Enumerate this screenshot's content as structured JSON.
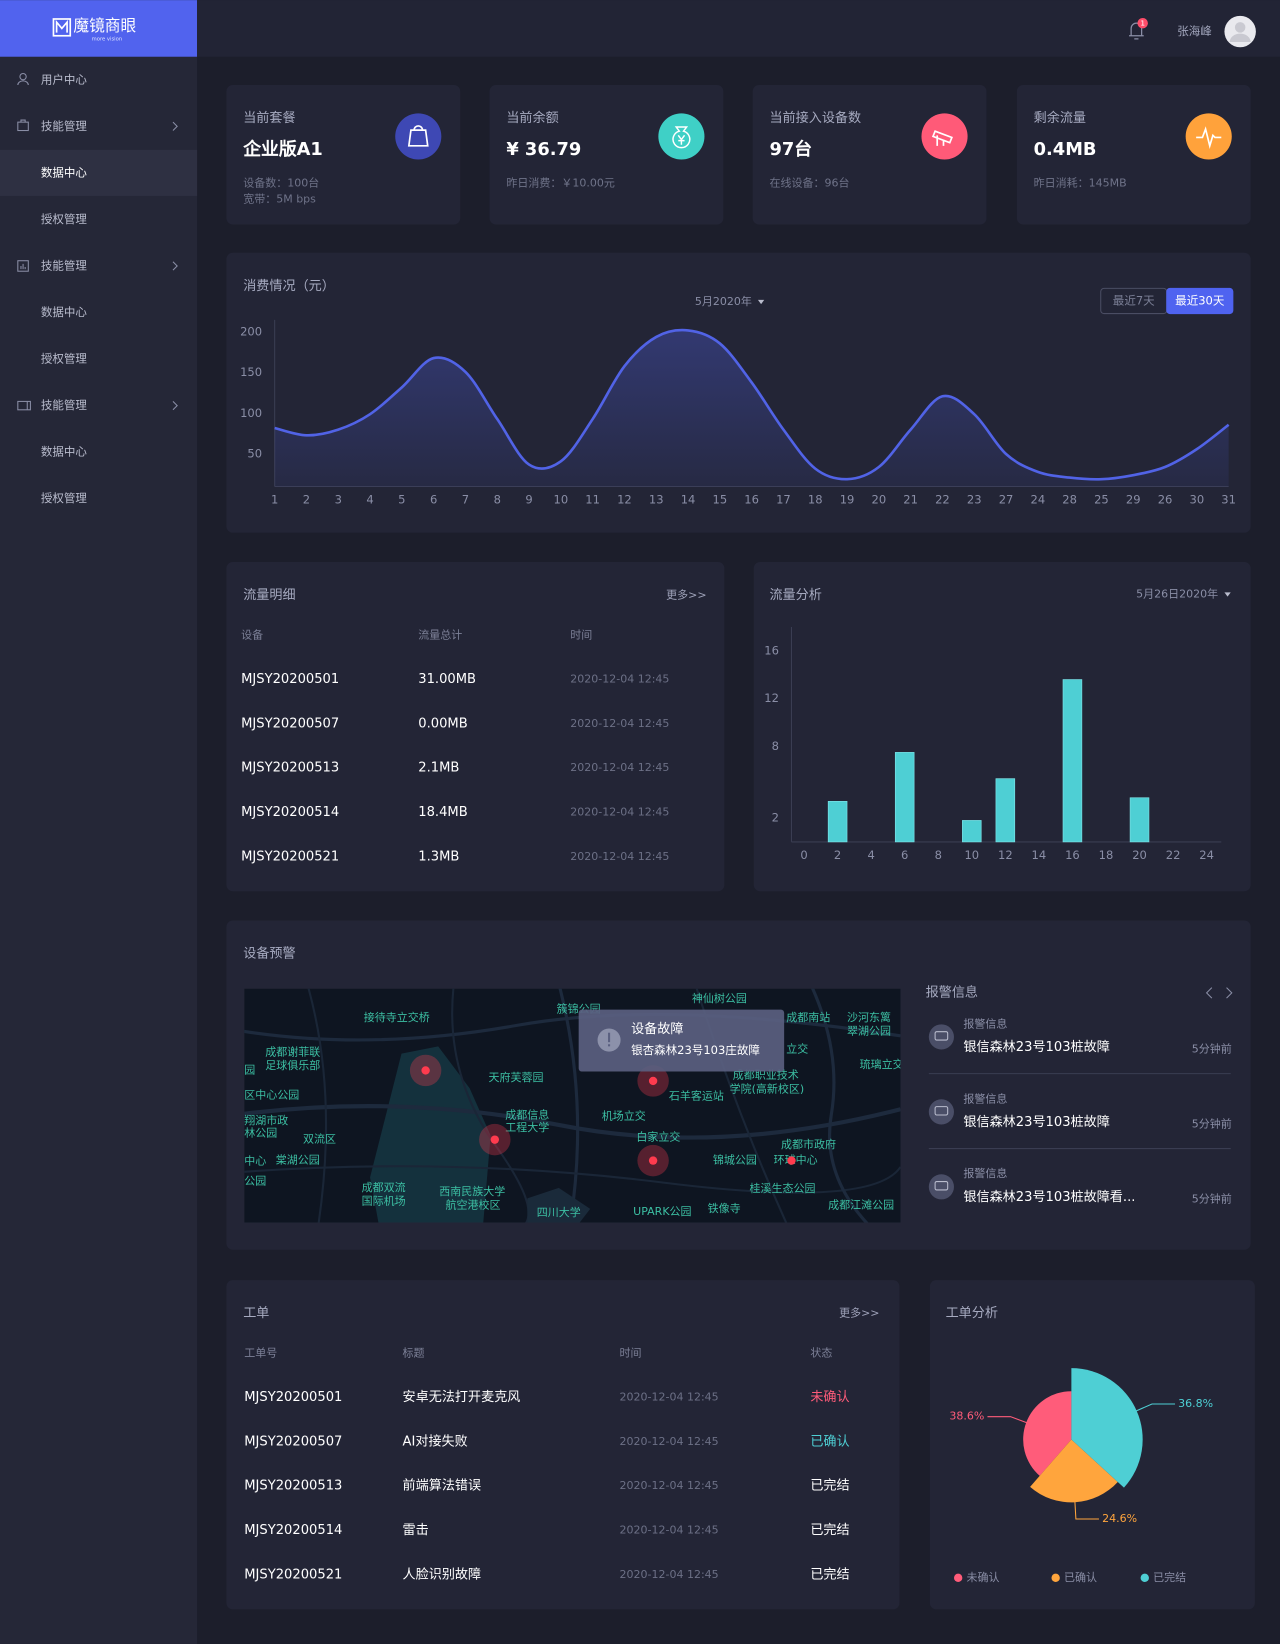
{
  "sidebar": {
    "logo": "魔镜商眼",
    "logo_sub": "more vision",
    "menu": [
      {
        "label": "用户中心"
      },
      {
        "label": "技能管理",
        "children": [
          "数据中心",
          "授权管理"
        ]
      },
      {
        "label": "技能管理",
        "children": [
          "数据中心",
          "授权管理"
        ]
      },
      {
        "label": "技能管理",
        "children": [
          "数据中心",
          "授权管理"
        ]
      }
    ]
  },
  "header": {
    "notifications": 1,
    "user": "张海峰"
  },
  "cards": [
    {
      "title": "当前套餐",
      "value": "企业版A1",
      "notes": [
        "设备数：100台",
        "宽带：5M bps"
      ],
      "color": "#3e48b4"
    },
    {
      "title": "当前余额",
      "value": "¥ 36.79",
      "notes": [
        "昨日消费：￥10.00元"
      ],
      "color": "#3fd0c6"
    },
    {
      "title": "当前接入设备数",
      "value": "97台",
      "notes": [
        "在线设备：96台"
      ],
      "color": "#ff5a78"
    },
    {
      "title": "剩余流量",
      "value": "0.4MB",
      "notes": [
        "昨日消耗：145MB"
      ],
      "color": "#ffa23b"
    }
  ],
  "consumption": {
    "period": "5月2020年",
    "ranges": [
      "最近7天",
      "最近30天"
    ]
  },
  "flow_detail": {
    "title": "流量明细",
    "more": "更多>>",
    "columns": [
      "设备",
      "流量总计",
      "时间"
    ],
    "rows": [
      [
        "MJSY20200501",
        "31.00MB",
        "2020-12-04  12:45"
      ],
      [
        "MJSY20200507",
        "0.00MB",
        "2020-12-04  12:45"
      ],
      [
        "MJSY20200513",
        "2.1MB",
        "2020-12-04  12:45"
      ],
      [
        "MJSY20200514",
        "18.4MB",
        "2020-12-04  12:45"
      ],
      [
        "MJSY20200521",
        "1.3MB",
        "2020-12-04  12:45"
      ]
    ]
  },
  "flow_analysis": {
    "period": "5月26日2020年"
  },
  "alerts": {
    "title": "设备预警",
    "map_labels": [
      "接待寺立交桥",
      "簇锦公园",
      "神仙树公园",
      "成都南站",
      "沙河东篱",
      "翠湖公园",
      "成都谢菲联",
      "足球俱乐部",
      "立交",
      "琉璃立交",
      "天府芙蓉园",
      "成都职业技术",
      "学院(高新校区)",
      "石羊客运站",
      "区中心公园",
      "成都信息",
      "工程大学",
      "机场立交",
      "翔湖市政",
      "林公园",
      "双流区",
      "白家立交",
      "成都市政府",
      "锦城公园",
      "环球中心",
      "棠湖公园",
      "中心",
      "公园",
      "成都双流",
      "国际机场",
      "西南民族大学",
      "航空港校区",
      "桂溪生态公园",
      "四川大学",
      "UPARK公园",
      "铁像寺",
      "成都江滩公园",
      "园"
    ],
    "tooltip": {
      "title": "设备故障",
      "text": "银杏森林23号103庄故障"
    },
    "panel_title": "报警信息",
    "items": [
      {
        "label": "报警信息",
        "text": "银信森林23号103桩故障",
        "time": "5分钟前"
      },
      {
        "label": "报警信息",
        "text": "银信森林23号103桩故障",
        "time": "5分钟前"
      },
      {
        "label": "报警信息",
        "text": "银信森林23号103桩故障看...",
        "time": "5分钟前"
      }
    ]
  },
  "work_orders": {
    "title": "工单",
    "more": "更多>>",
    "columns": [
      "工单号",
      "标题",
      "时间",
      "状态"
    ],
    "rows": [
      [
        "MJSY20200501",
        "安卓无法打开麦克风",
        "2020-12-04  12:45",
        "未确认"
      ],
      [
        "MJSY20200507",
        "AI对接失败",
        "2020-12-04  12:45",
        "已确认"
      ],
      [
        "MJSY20200513",
        "前端算法错误",
        "2020-12-04  12:45",
        "已完结"
      ],
      [
        "MJSY20200514",
        "雷击",
        "2020-12-04  12:45",
        "已完结"
      ],
      [
        "MJSY20200521",
        "人脸识别故障",
        "2020-12-04  12:45",
        "已完结"
      ]
    ],
    "status_colors": [
      "#ff5c7a",
      "#4ecfd4",
      "#ffffff",
      "#ffffff",
      "#ffffff"
    ]
  },
  "chart_data": [
    {
      "type": "line",
      "title": "消费情况（元）",
      "categories": [
        "1",
        "2",
        "3",
        "4",
        "5",
        "6",
        "7",
        "8",
        "9",
        "10",
        "11",
        "12",
        "13",
        "14",
        "15",
        "16",
        "17",
        "18",
        "19",
        "20",
        "21",
        "22",
        "23",
        "27",
        "24",
        "28",
        "25",
        "29",
        "26",
        "30",
        "31"
      ],
      "values": [
        82,
        73,
        80,
        99,
        132,
        168,
        151,
        93,
        37,
        41,
        93,
        158,
        194,
        202,
        186,
        138,
        80,
        32,
        19,
        34,
        80,
        121,
        99,
        50,
        28,
        21,
        19,
        24,
        34,
        56,
        86
      ],
      "color": "#5163e6",
      "ylim": [
        10,
        215
      ],
      "yticks": [
        50,
        100,
        150,
        200
      ],
      "area": true
    },
    {
      "type": "bar",
      "title": "流量分析",
      "x": [
        2,
        6,
        10,
        12,
        16,
        20
      ],
      "values": [
        3.4,
        7.5,
        1.8,
        5.3,
        13.6,
        3.7
      ],
      "color": "#4ecfd4",
      "xlim": [
        0,
        24
      ],
      "xticks": [
        0,
        2,
        4,
        6,
        8,
        10,
        12,
        14,
        16,
        18,
        20,
        22,
        24
      ],
      "ylim": [
        0,
        18
      ],
      "yticks": [
        2,
        8,
        12,
        16
      ]
    },
    {
      "type": "pie",
      "title": "工单分析",
      "categories": [
        "未确认",
        "已确认",
        "已完结"
      ],
      "values": [
        38.6,
        24.6,
        36.8
      ],
      "value_labels": [
        "38.6%",
        "24.6%",
        "36.8%"
      ],
      "colors": [
        "#ff5c7a",
        "#ffa53d",
        "#4ecfd4"
      ],
      "legend": "bottom"
    }
  ]
}
